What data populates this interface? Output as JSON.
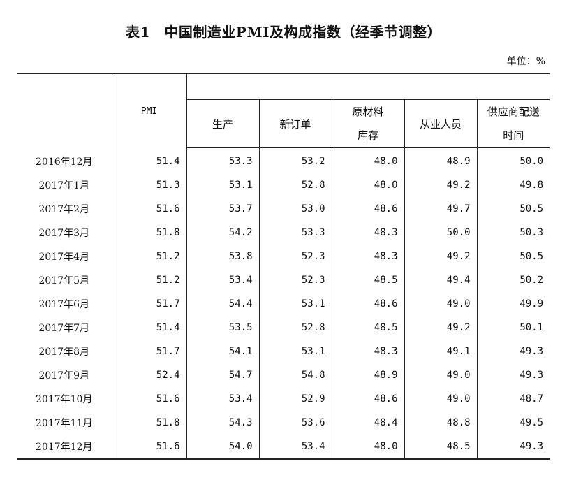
{
  "title": "表1　中国制造业PMI及构成指数（经季节调整）",
  "unit": "单位：%",
  "headers": {
    "pmi": "PMI",
    "production": "生产",
    "new_orders": "新订单",
    "raw_material_inventory_line1": "原材料",
    "raw_material_inventory_line2": "库存",
    "employment": "从业人员",
    "supplier_delivery_line1": "供应商配送",
    "supplier_delivery_line2": "时间"
  },
  "rows": [
    {
      "month": "2016年12月",
      "pmi": "51.4",
      "production": "53.3",
      "new_orders": "53.2",
      "raw_material_inventory": "48.0",
      "employment": "48.9",
      "supplier_delivery": "50.0"
    },
    {
      "month": "2017年1月",
      "pmi": "51.3",
      "production": "53.1",
      "new_orders": "52.8",
      "raw_material_inventory": "48.0",
      "employment": "49.2",
      "supplier_delivery": "49.8"
    },
    {
      "month": "2017年2月",
      "pmi": "51.6",
      "production": "53.7",
      "new_orders": "53.0",
      "raw_material_inventory": "48.6",
      "employment": "49.7",
      "supplier_delivery": "50.5"
    },
    {
      "month": "2017年3月",
      "pmi": "51.8",
      "production": "54.2",
      "new_orders": "53.3",
      "raw_material_inventory": "48.3",
      "employment": "50.0",
      "supplier_delivery": "50.3"
    },
    {
      "month": "2017年4月",
      "pmi": "51.2",
      "production": "53.8",
      "new_orders": "52.3",
      "raw_material_inventory": "48.3",
      "employment": "49.2",
      "supplier_delivery": "50.5"
    },
    {
      "month": "2017年5月",
      "pmi": "51.2",
      "production": "53.4",
      "new_orders": "52.3",
      "raw_material_inventory": "48.5",
      "employment": "49.4",
      "supplier_delivery": "50.2"
    },
    {
      "month": "2017年6月",
      "pmi": "51.7",
      "production": "54.4",
      "new_orders": "53.1",
      "raw_material_inventory": "48.6",
      "employment": "49.0",
      "supplier_delivery": "49.9"
    },
    {
      "month": "2017年7月",
      "pmi": "51.4",
      "production": "53.5",
      "new_orders": "52.8",
      "raw_material_inventory": "48.5",
      "employment": "49.2",
      "supplier_delivery": "50.1"
    },
    {
      "month": "2017年8月",
      "pmi": "51.7",
      "production": "54.1",
      "new_orders": "53.1",
      "raw_material_inventory": "48.3",
      "employment": "49.1",
      "supplier_delivery": "49.3"
    },
    {
      "month": "2017年9月",
      "pmi": "52.4",
      "production": "54.7",
      "new_orders": "54.8",
      "raw_material_inventory": "48.9",
      "employment": "49.0",
      "supplier_delivery": "49.3"
    },
    {
      "month": "2017年10月",
      "pmi": "51.6",
      "production": "53.4",
      "new_orders": "52.9",
      "raw_material_inventory": "48.6",
      "employment": "49.0",
      "supplier_delivery": "48.7"
    },
    {
      "month": "2017年11月",
      "pmi": "51.8",
      "production": "54.3",
      "new_orders": "53.6",
      "raw_material_inventory": "48.4",
      "employment": "48.8",
      "supplier_delivery": "49.5"
    },
    {
      "month": "2017年12月",
      "pmi": "51.6",
      "production": "54.0",
      "new_orders": "53.4",
      "raw_material_inventory": "48.0",
      "employment": "48.5",
      "supplier_delivery": "49.3"
    }
  ]
}
